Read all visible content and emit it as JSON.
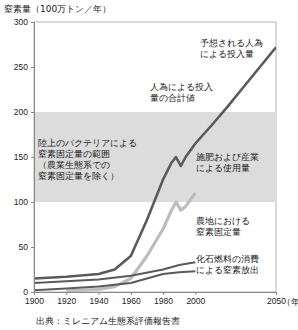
{
  "chart_data": {
    "type": "line",
    "y_label": "窒素量（100万トン／年）",
    "x_label": "（年）",
    "source": "出典：ミレニアム生態系評価報告書",
    "xlim": [
      1900,
      2050
    ],
    "xticks": [
      1900,
      1920,
      1940,
      1960,
      1980,
      2000,
      2050
    ],
    "ylim": [
      0,
      300
    ],
    "yticks": [
      0,
      50,
      100,
      150,
      200,
      250,
      300
    ],
    "band": {
      "name": "陸上のバクテリアによる\n窒素固定量の範囲\n（農業生態系での\n窒素固定量を除く）",
      "color": "#dcdcdc",
      "range": [
        100,
        200
      ]
    },
    "series": [
      {
        "name": "予想される人為\nによる投入量",
        "color": "#5a5a5a",
        "x": [
          2000,
          2010,
          2020,
          2030,
          2040,
          2050
        ],
        "values": [
          165,
          185,
          206,
          228,
          250,
          272
        ]
      },
      {
        "name": "人為による投入\n量の合計値",
        "color": "#5a5a5a",
        "x": [
          1900,
          1920,
          1940,
          1950,
          1960,
          1970,
          1980,
          1985,
          1988,
          1991,
          1994,
          2000
        ],
        "values": [
          15,
          17,
          20,
          25,
          40,
          80,
          125,
          143,
          150,
          140,
          150,
          165
        ]
      },
      {
        "name": "施肥および産業\nによる使用量",
        "color": "#bdbdbd",
        "x": [
          1920,
          1940,
          1950,
          1960,
          1970,
          1980,
          1985,
          1988,
          1991,
          1994,
          2000
        ],
        "values": [
          1,
          3,
          6,
          15,
          40,
          70,
          90,
          100,
          91,
          95,
          110
        ]
      },
      {
        "name": "農地における\n窒素固定量",
        "color": "#5a5a5a",
        "x": [
          1900,
          1920,
          1940,
          1960,
          1980,
          1990,
          2000
        ],
        "values": [
          10,
          12,
          14,
          18,
          25,
          30,
          33
        ]
      },
      {
        "name": "化石燃料の消費\nによる窒素放出",
        "color": "#5a5a5a",
        "x": [
          1900,
          1920,
          1940,
          1960,
          1980,
          1990,
          2000
        ],
        "values": [
          2,
          4,
          6,
          10,
          20,
          22,
          23
        ]
      }
    ]
  }
}
